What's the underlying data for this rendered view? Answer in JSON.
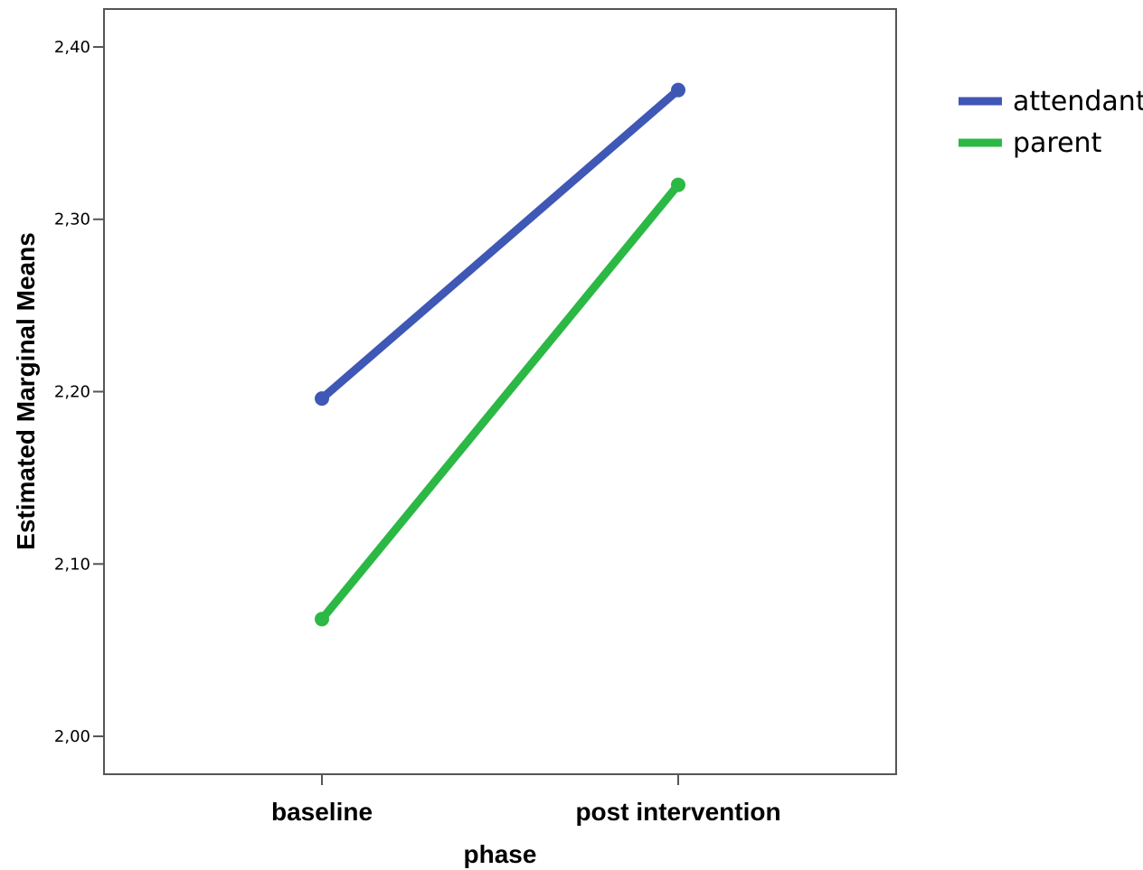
{
  "chart_data": {
    "type": "line",
    "categories": [
      "baseline",
      "post intervention"
    ],
    "series": [
      {
        "name": "attendant",
        "values": [
          2.196,
          2.375
        ],
        "color": "#3F57B5"
      },
      {
        "name": "parent",
        "values": [
          2.068,
          2.32
        ],
        "color": "#2CB845"
      }
    ],
    "xlabel": "phase",
    "ylabel": "Estimated Marginal Means",
    "ylim": [
      1.978,
      2.422
    ],
    "yticks": [
      "2,00",
      "2,10",
      "2,20",
      "2,30",
      "2,40"
    ],
    "ytick_values": [
      2.0,
      2.1,
      2.2,
      2.3,
      2.4
    ],
    "grid": false,
    "legend_position": "right"
  }
}
